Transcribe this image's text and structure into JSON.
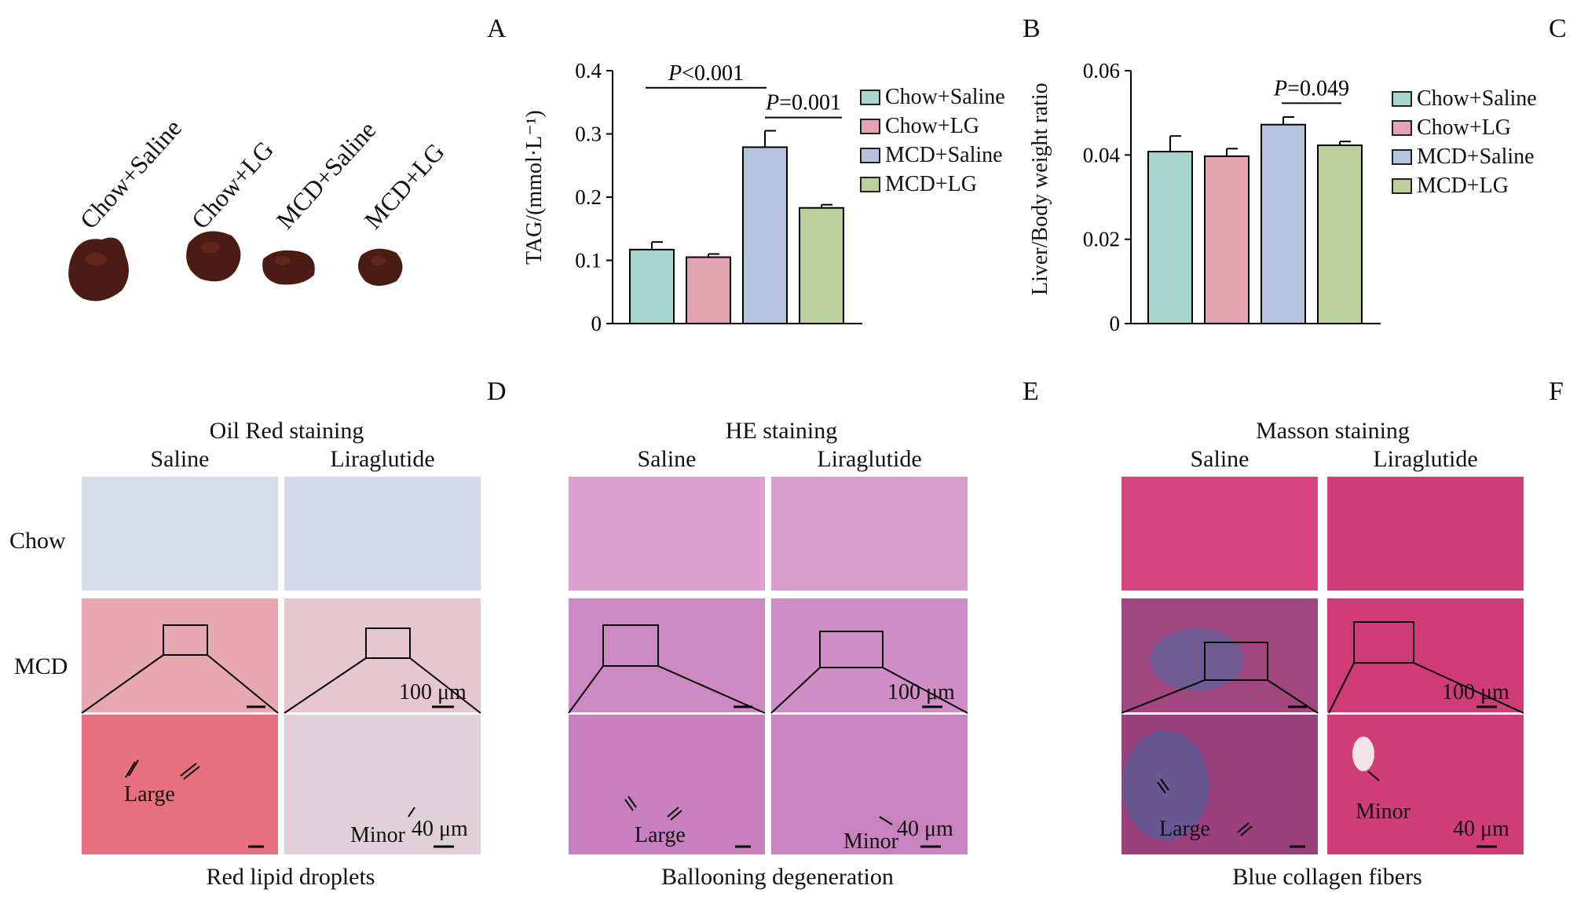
{
  "panels": {
    "a": "A",
    "b": "B",
    "c": "C",
    "d": "D",
    "e": "E",
    "f": "F"
  },
  "panel_a": {
    "samples": [
      "Chow+Saline",
      "Chow+LG",
      "MCD+Saline",
      "MCD+LG"
    ]
  },
  "legend": [
    "Chow+Saline",
    "Chow+LG",
    "MCD+Saline",
    "MCD+LG"
  ],
  "colors": {
    "chow_saline": "#a6d6cd",
    "chow_lg": "#e2a3b3",
    "mcd_saline": "#b6c3df",
    "mcd_lg": "#bdd09b",
    "oil_bg": "#d9dbe6",
    "oil_red": "#e0505e",
    "he_bg": "#d98cbf",
    "masson_bg": "#d23e7c",
    "masson_blue": "#3c6ea8"
  },
  "chart_data": [
    {
      "type": "bar",
      "title": "",
      "ylabel": "TAG/(mmol·L⁻¹)",
      "xlabel": "",
      "ylim": [
        0,
        0.4
      ],
      "yticks": [
        "0",
        "0.1",
        "0.2",
        "0.3",
        "0.4"
      ],
      "categories": [
        "Chow+Saline",
        "Chow+LG",
        "MCD+Saline",
        "MCD+LG"
      ],
      "values": [
        0.117,
        0.105,
        0.279,
        0.183
      ],
      "errors": [
        0.012,
        0.005,
        0.026,
        0.005
      ],
      "annotations": [
        "P<0.001",
        "P=0.001"
      ]
    },
    {
      "type": "bar",
      "title": "",
      "ylabel": "Liver/Body weight ratio",
      "xlabel": "",
      "ylim": [
        0,
        0.06
      ],
      "yticks": [
        "0",
        "0.02",
        "0.04",
        "0.06"
      ],
      "categories": [
        "Chow+Saline",
        "Chow+LG",
        "MCD+Saline",
        "MCD+LG"
      ],
      "values": [
        0.0408,
        0.0397,
        0.0472,
        0.0423
      ],
      "errors": [
        0.0037,
        0.0018,
        0.0018,
        0.0009
      ],
      "annotations": [
        "P=0.049"
      ]
    }
  ],
  "histology": {
    "d": {
      "title": "Oil Red staining",
      "col1": "Saline",
      "col2": "Liraglutide",
      "row1": "Chow",
      "row2": "MCD",
      "scale_100": "100 μm",
      "scale_40": "40 μm",
      "large": "Large",
      "minor": "Minor",
      "caption": "Red lipid droplets"
    },
    "e": {
      "title": "HE staining",
      "col1": "Saline",
      "col2": "Liraglutide",
      "scale_100": "100 μm",
      "scale_40": "40 μm",
      "large": "Large",
      "minor": "Minor",
      "caption": "Ballooning degeneration"
    },
    "f": {
      "title": "Masson staining",
      "col1": "Saline",
      "col2": "Liraglutide",
      "scale_100": "100 μm",
      "scale_40": "40 μm",
      "large": "Large",
      "minor": "Minor",
      "caption": "Blue collagen fibers"
    }
  }
}
